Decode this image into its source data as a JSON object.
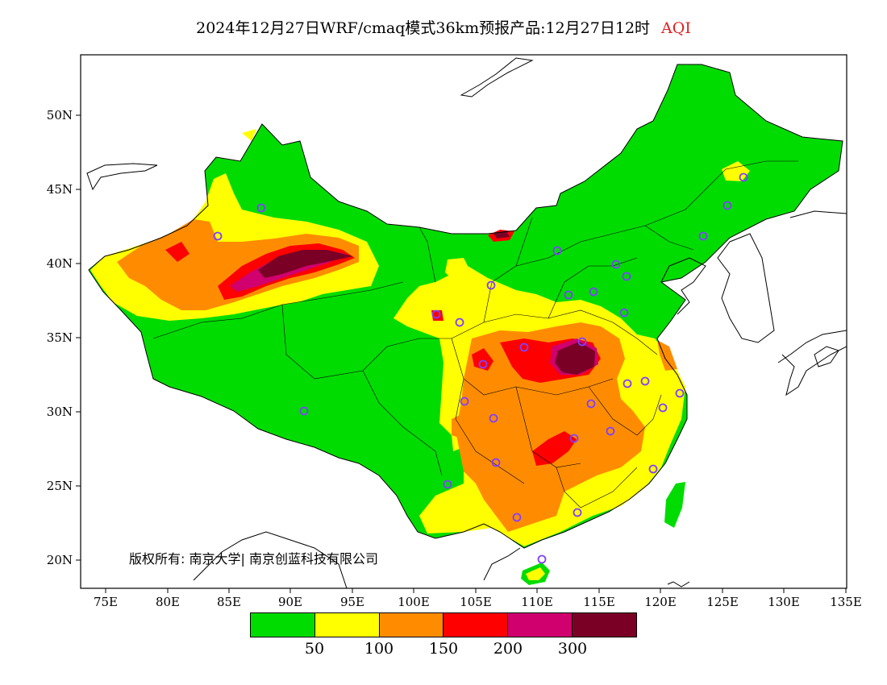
{
  "title": {
    "main": "2024年12月27日WRF/cmaq模式36km预报产品:12月27日12时",
    "variable": "AQI"
  },
  "map": {
    "x_ticks": [
      "75E",
      "80E",
      "85E",
      "90E",
      "95E",
      "100E",
      "105E",
      "110E",
      "115E",
      "120E",
      "125E",
      "130E",
      "135E"
    ],
    "y_ticks": [
      "50N",
      "45N",
      "40N",
      "35N",
      "30N",
      "25N",
      "20N"
    ],
    "copyright": "版权所有: 南京大学| 南京创蓝科技有限公司"
  },
  "legend": {
    "colors": [
      "#00dc00",
      "#ffff00",
      "#ff8c00",
      "#ff0000",
      "#d0006e",
      "#7a0025"
    ],
    "labels": [
      "50",
      "100",
      "150",
      "200",
      "300"
    ]
  },
  "colors": {
    "ocean": "#ffffff",
    "station_marker": "#8040ff",
    "title_accent": "#e02020"
  }
}
